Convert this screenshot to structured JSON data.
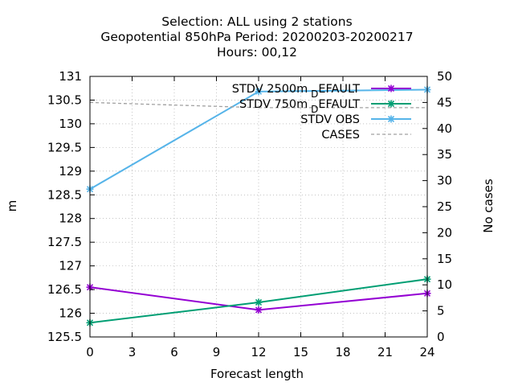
{
  "chart_data": {
    "type": "line",
    "title": [
      "Selection: ALL using     2 stations",
      "Geopotential 850hPa   Period: 20200203-20200217",
      "Hours:  00,12"
    ],
    "xlabel": "Forecast length",
    "ylabel": "m",
    "y2label": "No cases",
    "xlim": [
      0,
      24
    ],
    "ylim": [
      125.5,
      131
    ],
    "y2lim": [
      0,
      50
    ],
    "xticks": [
      0,
      3,
      6,
      9,
      12,
      15,
      18,
      21,
      24
    ],
    "yticks": [
      125.5,
      126,
      126.5,
      127,
      127.5,
      128,
      128.5,
      129,
      129.5,
      130,
      130.5,
      131
    ],
    "y2ticks": [
      0,
      5,
      10,
      15,
      20,
      25,
      30,
      35,
      40,
      45,
      50
    ],
    "grid": true,
    "legend_position": "top-right",
    "series": [
      {
        "name": "STDV 2500m_DEFAULT",
        "legend_main": "STDV 2500m",
        "legend_sub": "D",
        "legend_rest": "EFAULT",
        "axis": "y1",
        "color": "#9400d3",
        "x": [
          0,
          12,
          24
        ],
        "y": [
          126.55,
          126.07,
          126.42
        ]
      },
      {
        "name": "STDV 750m_DEFAULT",
        "legend_main": "STDV 750m",
        "legend_sub": "D",
        "legend_rest": "EFAULT",
        "axis": "y1",
        "color": "#009e73",
        "x": [
          0,
          12,
          24
        ],
        "y": [
          125.8,
          126.23,
          126.72
        ]
      },
      {
        "name": "STDV OBS",
        "legend_main": "STDV OBS",
        "legend_sub": "",
        "legend_rest": "",
        "axis": "y1",
        "color": "#56b4e9",
        "x": [
          0,
          12,
          24
        ],
        "y": [
          128.62,
          130.68,
          130.72
        ]
      },
      {
        "name": "CASES",
        "legend_main": "CASES",
        "legend_sub": "",
        "legend_rest": "",
        "axis": "y2",
        "color": "#a0a0a0",
        "dashed": true,
        "x": [
          0,
          12,
          24
        ],
        "y": [
          45,
          44,
          44
        ]
      }
    ]
  }
}
